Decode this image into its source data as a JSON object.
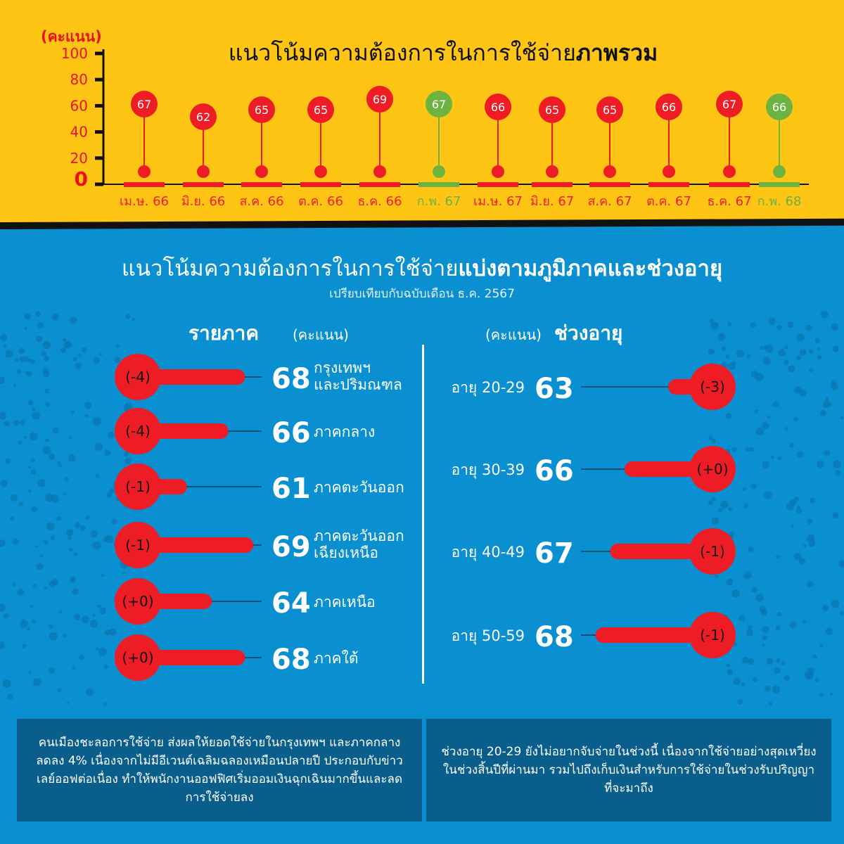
{
  "top_section": {
    "title_normal": "แนวโน้มความต้องการในการใช้จ่าย",
    "title_bold": "ภาพรวม",
    "unit_label": "(คะแนน)"
  },
  "bottom_section": {
    "title_normal": "แนวโน้มความต้องการในการใช้จ่าย",
    "title_bold": "แบ่งตามภูมิภาคและช่วงอายุ",
    "subtitle": "เปรียบเทียบกับฉบับเดือน ธ.ค. 2567",
    "region_header": "รายภาค",
    "region_unit": "(คะแนน)",
    "age_header": "ช่วงอายุ",
    "age_unit": "(คะแนน)"
  },
  "colors": {
    "red": "#ee1c24",
    "green": "#6db33f",
    "yellow": "#fec514",
    "blue": "#0a8fd0",
    "note_bg": "#0a5e8c"
  },
  "chart_data": [
    {
      "type": "lollipop",
      "title": "แนวโน้มความต้องการในการใช้จ่ายภาพรวม",
      "ylabel": "(คะแนน)",
      "ylim": [
        0,
        100
      ],
      "yticks": [
        "0",
        "20",
        "40",
        "60",
        "80",
        "100"
      ],
      "categories": [
        "เม.ษ. 66",
        "มิ.ย. 66",
        "ส.ค. 66",
        "ต.ค. 66",
        "ธ.ค. 66",
        "ก.พ. 67",
        "เม.ษ. 67",
        "มิ.ย. 67",
        "ส.ค. 67",
        "ต.ค. 67",
        "ธ.ค. 67",
        "ก.พ. 68"
      ],
      "values": [
        67,
        62,
        65,
        65,
        69,
        67,
        66,
        65,
        65,
        66,
        67,
        66
      ],
      "highlight": [
        false,
        false,
        false,
        false,
        false,
        true,
        false,
        false,
        false,
        false,
        false,
        true
      ]
    },
    {
      "type": "bar",
      "title": "รายภาค",
      "unit": "(คะแนน)",
      "categories": [
        "กรุงเทพฯ\nและปริมณฑล",
        "ภาคกลาง",
        "ภาคตะวันออก",
        "ภาคตะวันออก\nเฉียงเหนือ",
        "ภาคเหนือ",
        "ภาคใต้"
      ],
      "values": [
        68,
        66,
        61,
        69,
        64,
        68
      ],
      "change": [
        "(-4)",
        "(-4)",
        "(-1)",
        "(-1)",
        "(+0)",
        "(+0)"
      ]
    },
    {
      "type": "bar",
      "title": "ช่วงอายุ",
      "unit": "(คะแนน)",
      "categories": [
        "อายุ 20-29",
        "อายุ 30-39",
        "อายุ 40-49",
        "อายุ 50-59"
      ],
      "values": [
        63,
        66,
        67,
        68
      ],
      "change": [
        "(-3)",
        "(+0)",
        "(-1)",
        "(-1)"
      ]
    }
  ],
  "notes": {
    "left": "คนเมืองชะลอการใช้จ่าย ส่งผลให้ยอดใช้จ่ายในกรุงเทพฯ และภาคกลางลดลง 4% เนื่องจากไม่มีอีเวนต์เฉลิมฉลองเหมือนปลายปี ประกอบกับข่าวเลย์ออฟต่อเนื่อง ทำให้พนักงานออฟฟิศเริ่มออมเงินฉุกเฉินมากขึ้นและลดการใช้จ่ายลง",
    "right": "ช่วงอายุ 20-29 ยังไม่อยากจับจ่ายในช่วงนี้ เนื่องจากใช้จ่ายอย่างสุดเหวี่ยงในช่วงสิ้นปีที่ผ่านมา รวมไปถึงเก็บเงินสำหรับการใช้จ่ายในช่วงรับปริญญาที่จะมาถึง"
  }
}
